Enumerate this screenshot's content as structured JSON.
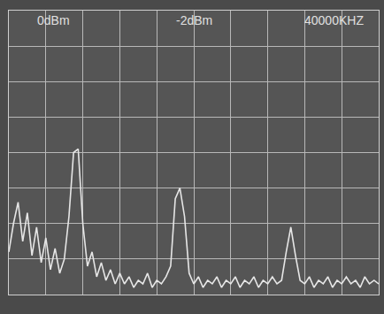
{
  "chart_data": {
    "type": "line",
    "annotations": [
      "0dBm",
      "-2dBm",
      "40000KHZ"
    ],
    "x": [
      0,
      0.125,
      0.25,
      0.375,
      0.5,
      0.625,
      0.75,
      0.875,
      1,
      1.125,
      1.25,
      1.375,
      1.5,
      1.625,
      1.75,
      1.875,
      2,
      2.125,
      2.25,
      2.375,
      2.5,
      2.625,
      2.75,
      2.875,
      3,
      3.125,
      3.25,
      3.375,
      3.5,
      3.625,
      3.75,
      3.875,
      4,
      4.125,
      4.25,
      4.375,
      4.5,
      4.625,
      4.75,
      4.875,
      5,
      5.125,
      5.25,
      5.375,
      5.5,
      5.625,
      5.75,
      5.875,
      6,
      6.125,
      6.25,
      6.375,
      6.5,
      6.625,
      6.75,
      6.875,
      7,
      7.125,
      7.25,
      7.375,
      7.5,
      7.625,
      7.75,
      7.875,
      8,
      8.125,
      8.25,
      8.375,
      8.5,
      8.625,
      8.75,
      8.875,
      9,
      9.125,
      9.25,
      9.375,
      9.5,
      9.625,
      9.75,
      9.875,
      10
    ],
    "values": [
      1.2,
      2.0,
      2.6,
      1.5,
      2.3,
      1.1,
      1.9,
      0.9,
      1.6,
      0.7,
      1.3,
      0.6,
      1.0,
      2.2,
      4.0,
      4.1,
      2.0,
      0.8,
      1.2,
      0.5,
      0.9,
      0.4,
      0.7,
      0.3,
      0.6,
      0.3,
      0.5,
      0.2,
      0.4,
      0.3,
      0.6,
      0.2,
      0.4,
      0.3,
      0.5,
      0.8,
      2.7,
      3.0,
      2.2,
      0.6,
      0.3,
      0.5,
      0.2,
      0.4,
      0.3,
      0.5,
      0.2,
      0.4,
      0.3,
      0.5,
      0.2,
      0.4,
      0.3,
      0.5,
      0.2,
      0.4,
      0.3,
      0.5,
      0.3,
      0.4,
      1.2,
      1.9,
      1.1,
      0.4,
      0.3,
      0.5,
      0.2,
      0.4,
      0.3,
      0.5,
      0.2,
      0.4,
      0.3,
      0.5,
      0.3,
      0.4,
      0.2,
      0.5,
      0.3,
      0.4,
      0.3
    ],
    "color": "#e6e6e6",
    "xlim": [
      0,
      10
    ],
    "xticks": [
      0,
      1,
      2,
      3,
      4,
      5,
      6,
      7,
      8,
      9,
      10
    ],
    "ylim": [
      0,
      8
    ],
    "yticks": [
      0,
      1,
      2,
      3,
      4,
      5,
      6,
      7,
      8
    ],
    "grid": true,
    "tick_labels": false
  }
}
